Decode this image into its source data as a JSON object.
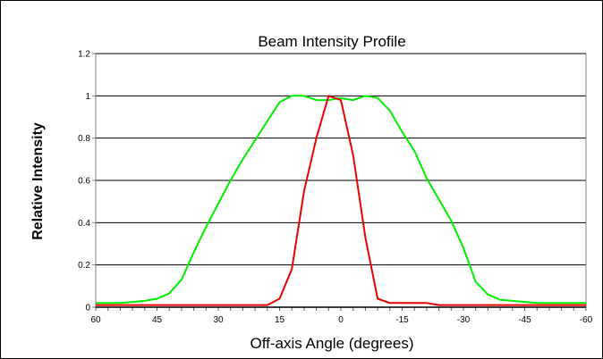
{
  "chart_data": {
    "type": "line",
    "title": "Beam Intensity Profile",
    "xlabel": "Off-axis Angle (degrees)",
    "ylabel": "Relative Intensity",
    "xlim": [
      60,
      -60
    ],
    "ylim": [
      0,
      1.2
    ],
    "x_ticks": [
      "60",
      "45",
      "30",
      "15",
      "0",
      "-15",
      "-30",
      "-45",
      "-60"
    ],
    "y_ticks": [
      "0",
      "0.2",
      "0.4",
      "0.6",
      "0.8",
      "1",
      "1.2"
    ],
    "grid": "horizontal",
    "legend": "none",
    "series": [
      {
        "color": "#00ee00",
        "x": [
          60,
          57,
          54,
          51,
          48,
          45,
          42,
          39,
          36,
          33,
          30,
          27,
          24,
          21,
          18,
          15,
          12,
          9,
          6,
          3,
          0,
          -3,
          -6,
          -9,
          -12,
          -15,
          -18,
          -21,
          -24,
          -27,
          -30,
          -33,
          -36,
          -39,
          -42,
          -45,
          -48,
          -51,
          -54,
          -57,
          -60
        ],
        "y": [
          0.02,
          0.02,
          0.02,
          0.025,
          0.03,
          0.04,
          0.065,
          0.13,
          0.26,
          0.38,
          0.49,
          0.6,
          0.7,
          0.79,
          0.88,
          0.97,
          1.0,
          1.0,
          0.98,
          0.98,
          0.99,
          0.98,
          1.0,
          0.99,
          0.93,
          0.83,
          0.74,
          0.61,
          0.51,
          0.41,
          0.28,
          0.12,
          0.06,
          0.035,
          0.03,
          0.025,
          0.02,
          0.02,
          0.02,
          0.02,
          0.02
        ]
      },
      {
        "color": "#ee0000",
        "x": [
          60,
          57,
          54,
          51,
          48,
          45,
          42,
          39,
          36,
          33,
          30,
          27,
          24,
          21,
          18,
          15,
          12,
          9,
          6,
          3,
          0,
          -3,
          -6,
          -9,
          -12,
          -15,
          -18,
          -21,
          -24,
          -27,
          -30,
          -33,
          -36,
          -39,
          -42,
          -45,
          -48,
          -51,
          -54,
          -57,
          -60
        ],
        "y": [
          0.01,
          0.01,
          0.01,
          0.01,
          0.01,
          0.01,
          0.01,
          0.01,
          0.01,
          0.01,
          0.01,
          0.01,
          0.01,
          0.01,
          0.01,
          0.04,
          0.18,
          0.55,
          0.8,
          1.0,
          0.98,
          0.72,
          0.33,
          0.04,
          0.02,
          0.02,
          0.02,
          0.02,
          0.01,
          0.01,
          0.01,
          0.01,
          0.01,
          0.01,
          0.01,
          0.01,
          0.01,
          0.01,
          0.01,
          0.01,
          0.01
        ]
      }
    ]
  }
}
